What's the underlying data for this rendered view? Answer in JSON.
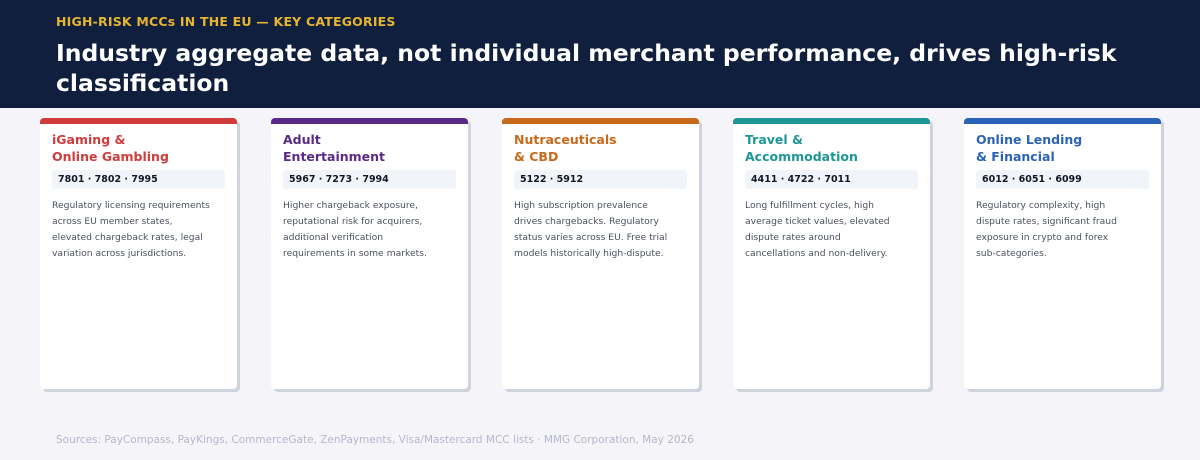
{
  "header": {
    "kicker": "HIGH-RISK MCCs IN THE EU — KEY CATEGORIES",
    "headline": "Industry aggregate data, not individual merchant performance, drives high-risk classification"
  },
  "cards": [
    {
      "title_lines": [
        "iGaming &",
        "Online Gambling"
      ],
      "codes": "7801 · 7802 · 7995",
      "accent": "#d03b3b",
      "desc_lines": [
        "Regulatory licensing requirements",
        "across EU member states,",
        "elevated chargeback rates, legal",
        "variation across jurisdictions."
      ]
    },
    {
      "title_lines": [
        "Adult",
        "Entertainment"
      ],
      "codes": "5967 · 7273 · 7994",
      "accent": "#5b2a86",
      "desc_lines": [
        "Higher chargeback exposure,",
        "reputational risk for acquirers,",
        "additional verification",
        "requirements in some markets."
      ]
    },
    {
      "title_lines": [
        "Nutraceuticals",
        "& CBD"
      ],
      "codes": "5122 · 5912",
      "accent": "#c8691a",
      "desc_lines": [
        "High subscription prevalence",
        "drives chargebacks. Regulatory",
        "status varies across EU. Free trial",
        "models historically high-dispute."
      ]
    },
    {
      "title_lines": [
        "Travel &",
        "Accommodation"
      ],
      "codes": "4411 · 4722 · 7011",
      "accent": "#1e9596",
      "desc_lines": [
        "Long fulfillment cycles, high",
        "average ticket values, elevated",
        "dispute rates around",
        "cancellations and non-delivery."
      ]
    },
    {
      "title_lines": [
        "Online Lending",
        "& Financial"
      ],
      "codes": "6012 · 6051 · 6099",
      "accent": "#2b63b8",
      "desc_lines": [
        "Regulatory complexity, high",
        "dispute rates, significant fraud",
        "exposure in crypto and forex",
        "sub-categories."
      ]
    }
  ],
  "footer": {
    "text": "Sources: PayCompass, PayKings, CommerceGate, ZenPayments, Visa/Mastercard MCC lists  ·  MMG Corporation, May 2026"
  }
}
